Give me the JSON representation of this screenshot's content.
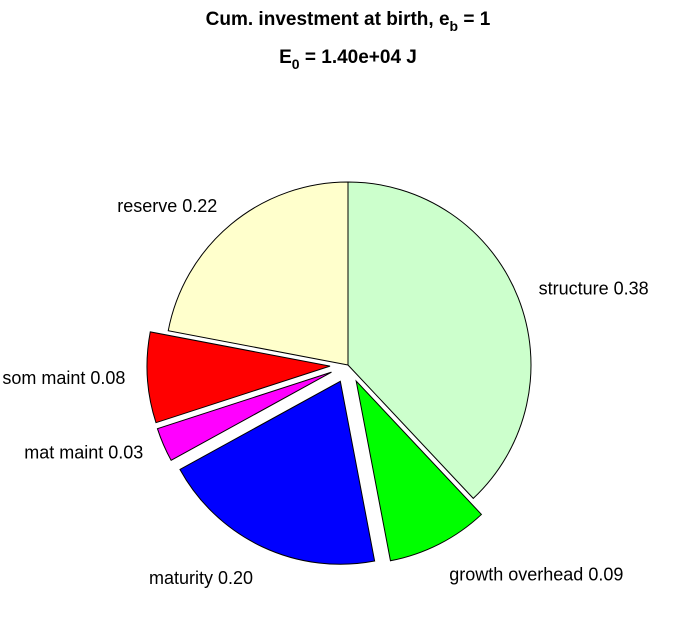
{
  "chart_data": {
    "type": "pie",
    "title_lines": [
      [
        "Cum. investment at birth, e",
        "b",
        " = 1"
      ],
      [
        "E",
        "0",
        " = 1.40e+04 J"
      ]
    ],
    "categories": [
      "structure",
      "growth overhead",
      "maturity",
      "mat maint",
      "som maint",
      "reserve"
    ],
    "values": [
      0.38,
      0.09,
      0.2,
      0.03,
      0.08,
      0.22
    ],
    "value_labels": [
      "0.38",
      "0.09",
      "0.20",
      "0.03",
      "0.08",
      "0.22"
    ],
    "explode": [
      false,
      true,
      true,
      true,
      true,
      false
    ],
    "colors": [
      "#ccffcc",
      "#00ff00",
      "#0000ff",
      "#ff00ff",
      "#ff0000",
      "#ffffcc"
    ]
  }
}
